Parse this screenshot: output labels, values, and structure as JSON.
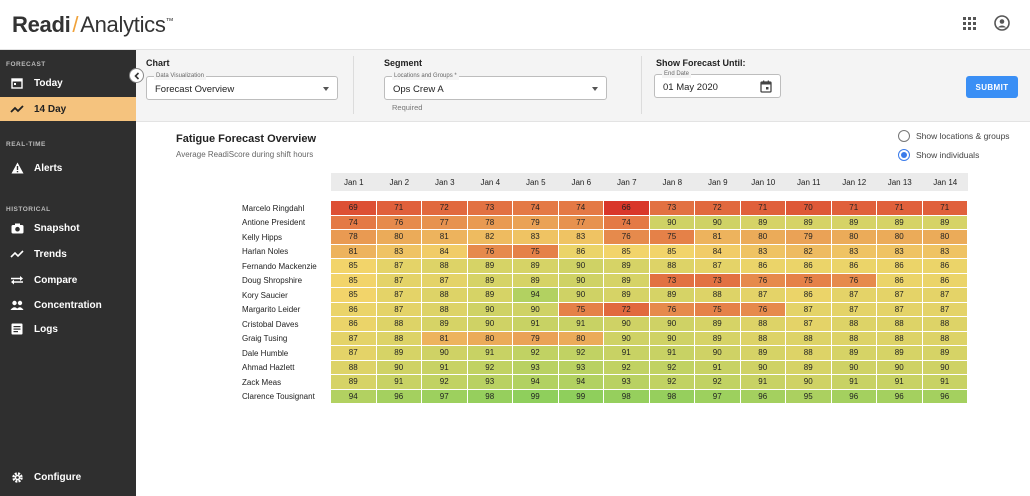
{
  "app": {
    "logo_bold": "Readi",
    "logo_light": "Analytics",
    "logo_tm": "™"
  },
  "sidebar": {
    "sections": [
      {
        "label": "FORECAST",
        "items": [
          {
            "label": "Today",
            "icon": "calendar-icon"
          },
          {
            "label": "14 Day",
            "icon": "trend-line-icon",
            "active": true
          }
        ]
      },
      {
        "label": "REAL-TIME",
        "items": [
          {
            "label": "Alerts",
            "icon": "warning-icon"
          }
        ]
      },
      {
        "label": "HISTORICAL",
        "items": [
          {
            "label": "Snapshot",
            "icon": "camera-icon"
          },
          {
            "label": "Trends",
            "icon": "trend-line-icon"
          },
          {
            "label": "Compare",
            "icon": "compare-icon"
          },
          {
            "label": "Concentration",
            "icon": "group-icon"
          },
          {
            "label": "Logs",
            "icon": "log-icon"
          }
        ]
      }
    ],
    "configure_label": "Configure"
  },
  "filters": {
    "chart": {
      "label": "Chart",
      "field_label": "Data Visualization",
      "value": "Forecast Overview"
    },
    "segment": {
      "label": "Segment",
      "field_label": "Locations and Groups *",
      "value": "Ops Crew A",
      "helper": "Required"
    },
    "forecast": {
      "label": "Show Forecast Until:",
      "field_label": "End Date",
      "value": "01 May 2020"
    },
    "submit_label": "SUBMIT"
  },
  "overview": {
    "title": "Fatigue Forecast Overview",
    "subtitle": "Average ReadiScore during shift hours",
    "radio_options": [
      {
        "label": "Show locations & groups",
        "selected": false
      },
      {
        "label": "Show individuals",
        "selected": true
      }
    ]
  },
  "colors": {
    "accent": "#f5c37e",
    "submit": "#3a8ff5",
    "sidebar": "#2f2f2f"
  },
  "chart_data": {
    "type": "heatmap",
    "x": [
      "Jan 1",
      "Jan 2",
      "Jan 3",
      "Jan 4",
      "Jan 5",
      "Jan 6",
      "Jan 7",
      "Jan 8",
      "Jan 9",
      "Jan 10",
      "Jan 11",
      "Jan 12",
      "Jan 13",
      "Jan 14"
    ],
    "rows": [
      {
        "name": "Marcelo Ringdahl",
        "values": [
          69,
          71,
          72,
          73,
          74,
          74,
          66,
          73,
          72,
          71,
          70,
          71,
          71,
          71
        ]
      },
      {
        "name": "Antione President",
        "values": [
          74,
          76,
          77,
          78,
          79,
          77,
          74,
          90,
          90,
          89,
          89,
          89,
          89,
          89
        ]
      },
      {
        "name": "Kelly Hipps",
        "values": [
          78,
          80,
          81,
          82,
          83,
          83,
          76,
          75,
          81,
          80,
          79,
          80,
          80,
          80
        ]
      },
      {
        "name": "Harlan Noles",
        "values": [
          81,
          83,
          84,
          76,
          75,
          86,
          85,
          85,
          84,
          83,
          82,
          83,
          83,
          83
        ]
      },
      {
        "name": "Fernando Mackenzie",
        "values": [
          85,
          87,
          88,
          89,
          89,
          90,
          89,
          88,
          87,
          86,
          86,
          86,
          86,
          86
        ]
      },
      {
        "name": "Doug Shropshire",
        "values": [
          85,
          87,
          87,
          89,
          89,
          90,
          89,
          73,
          73,
          76,
          75,
          76,
          86,
          86
        ]
      },
      {
        "name": "Kory Saucier",
        "values": [
          85,
          87,
          88,
          89,
          94,
          90,
          89,
          89,
          88,
          87,
          86,
          87,
          87,
          87
        ]
      },
      {
        "name": "Margarito Leider",
        "values": [
          86,
          87,
          88,
          90,
          90,
          75,
          72,
          76,
          75,
          76,
          87,
          87,
          87,
          87
        ]
      },
      {
        "name": "Cristobal Daves",
        "values": [
          86,
          88,
          89,
          90,
          91,
          91,
          90,
          90,
          89,
          88,
          87,
          88,
          88,
          88
        ]
      },
      {
        "name": "Graig Tusing",
        "values": [
          87,
          88,
          81,
          80,
          79,
          80,
          90,
          90,
          89,
          88,
          88,
          88,
          88,
          88
        ]
      },
      {
        "name": "Dale Humble",
        "values": [
          87,
          89,
          90,
          91,
          92,
          92,
          91,
          91,
          90,
          89,
          88,
          89,
          89,
          89
        ]
      },
      {
        "name": "Ahmad Hazlett",
        "values": [
          88,
          90,
          91,
          92,
          93,
          93,
          92,
          92,
          91,
          90,
          89,
          90,
          90,
          90
        ]
      },
      {
        "name": "Zack Meas",
        "values": [
          89,
          91,
          92,
          93,
          94,
          94,
          93,
          92,
          92,
          91,
          90,
          91,
          91,
          91
        ]
      },
      {
        "name": "Clarence Tousignant",
        "values": [
          94,
          96,
          97,
          98,
          99,
          99,
          98,
          98,
          97,
          96,
          95,
          96,
          96,
          96
        ]
      }
    ],
    "color_scale": {
      "low": "#d9372a",
      "mid": "#f2d46a",
      "high": "#8fcf5c"
    }
  }
}
